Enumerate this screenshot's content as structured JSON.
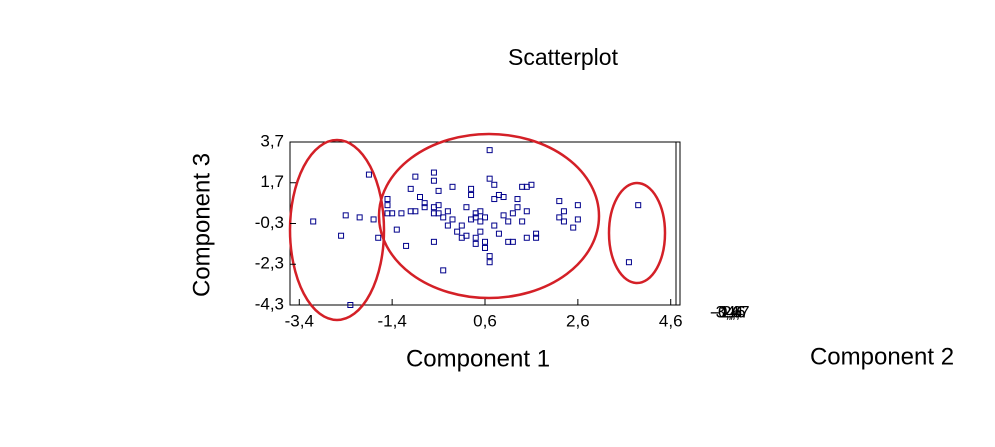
{
  "chart_data": {
    "type": "scatter",
    "title": "Scatterplot",
    "x_label": "Component 1",
    "y_label": "Component 3",
    "z_label": "Component 2",
    "color": "#00008b",
    "x": [
      -3.1,
      -2.5,
      -2.4,
      -2.3,
      -2.1,
      -1.9,
      -1.8,
      -1.7,
      -1.5,
      -1.5,
      -1.5,
      -1.4,
      -1.3,
      -1.2,
      -1.1,
      -1.0,
      -1.0,
      -0.9,
      -0.9,
      -0.8,
      -0.7,
      -0.7,
      -0.5,
      -0.5,
      -0.5,
      -0.5,
      -0.5,
      -0.4,
      -0.4,
      -0.4,
      -0.3,
      -0.3,
      -0.2,
      -0.2,
      -0.1,
      -0.1,
      0.0,
      0.1,
      0.1,
      0.2,
      0.2,
      0.3,
      0.3,
      0.3,
      0.4,
      0.4,
      0.4,
      0.4,
      0.5,
      0.5,
      0.5,
      0.6,
      0.6,
      0.6,
      0.7,
      0.7,
      0.7,
      0.7,
      0.8,
      0.8,
      0.8,
      0.9,
      0.9,
      1.0,
      1.0,
      1.1,
      1.1,
      1.2,
      1.2,
      1.3,
      1.3,
      1.4,
      1.4,
      1.5,
      1.5,
      1.5,
      1.6,
      1.7,
      1.7,
      2.2,
      2.2,
      2.3,
      2.3,
      2.5,
      2.6,
      2.6,
      3.7,
      3.9
    ],
    "y": [
      -0.2,
      -0.9,
      0.1,
      -4.3,
      0.0,
      2.1,
      -0.1,
      -1.0,
      0.9,
      0.6,
      0.2,
      0.2,
      -0.6,
      0.2,
      -1.4,
      0.3,
      1.4,
      2.0,
      0.3,
      1.0,
      0.5,
      0.7,
      2.2,
      0.2,
      -1.2,
      1.8,
      0.5,
      0.2,
      1.3,
      0.6,
      -2.6,
      0.0,
      0.3,
      -0.4,
      -0.1,
      1.5,
      -0.7,
      -0.4,
      -1.0,
      -0.9,
      0.5,
      1.4,
      1.1,
      -0.1,
      0.2,
      -1.0,
      0.0,
      -1.3,
      -0.2,
      0.3,
      -0.7,
      -1.5,
      0.0,
      -1.2,
      3.3,
      -1.9,
      1.9,
      -2.2,
      0.9,
      -0.4,
      1.6,
      -0.8,
      1.1,
      0.1,
      1.0,
      -0.2,
      -1.2,
      0.2,
      -1.2,
      0.5,
      0.9,
      -0.2,
      1.5,
      -1.0,
      0.3,
      1.5,
      1.6,
      -0.8,
      -1.0,
      0.8,
      0.0,
      -0.2,
      0.3,
      -0.5,
      0.6,
      -0.1,
      -2.2,
      0.6
    ],
    "xlim": [
      -3.6,
      4.8
    ],
    "ylim": [
      -4.3,
      3.7
    ],
    "xticks": [
      {
        "value": -3.4,
        "label": "-3,4"
      },
      {
        "value": -1.4,
        "label": "-1,4"
      },
      {
        "value": 0.6,
        "label": "0,6"
      },
      {
        "value": 2.6,
        "label": "2,6"
      },
      {
        "value": 4.6,
        "label": "4,6"
      }
    ],
    "yticks": [
      {
        "value": 3.7,
        "label": "3,7"
      },
      {
        "value": 1.7,
        "label": "1,7"
      },
      {
        "value": -0.3,
        "label": "-0,3"
      },
      {
        "value": -2.3,
        "label": "-2,3"
      },
      {
        "value": -4.3,
        "label": "-4,3"
      }
    ],
    "zticks": [
      {
        "value": -3.4,
        "label": "-3,4"
      },
      {
        "value": -1.4,
        "label": "-1,4"
      },
      {
        "value": 0.6,
        "label": "0,6"
      },
      {
        "value": 2.6,
        "label": "2,6"
      },
      {
        "value": 4.7,
        "label": "4,7"
      }
    ]
  }
}
